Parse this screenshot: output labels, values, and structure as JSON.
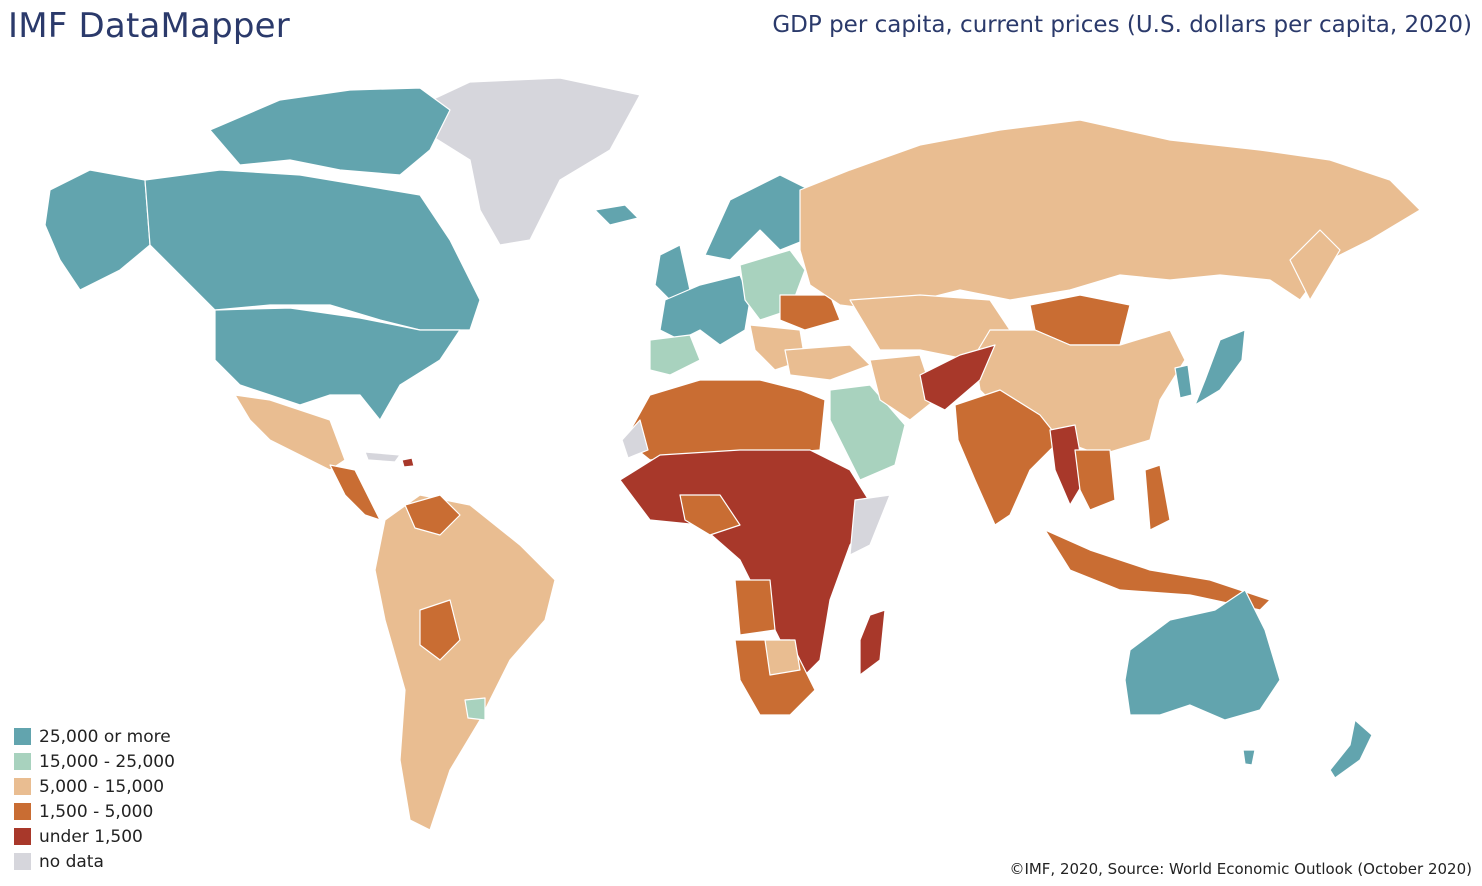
{
  "header": {
    "brand": "IMF DataMapper",
    "title": "GDP per capita, current prices (U.S. dollars per capita, 2020)"
  },
  "legend": [
    {
      "label": "25,000 or more",
      "color": "#62a4ae"
    },
    {
      "label": "15,000 - 25,000",
      "color": "#a8d2be"
    },
    {
      "label": "5,000 - 15,000",
      "color": "#e9bd91"
    },
    {
      "label": "1,500 - 5,000",
      "color": "#c96d33"
    },
    {
      "label": "under 1,500",
      "color": "#a8382a"
    },
    {
      "label": "no data",
      "color": "#d6d6dc"
    }
  ],
  "footer": {
    "credit": "©IMF, 2020, Source: World Economic Outlook (October 2020)"
  }
}
